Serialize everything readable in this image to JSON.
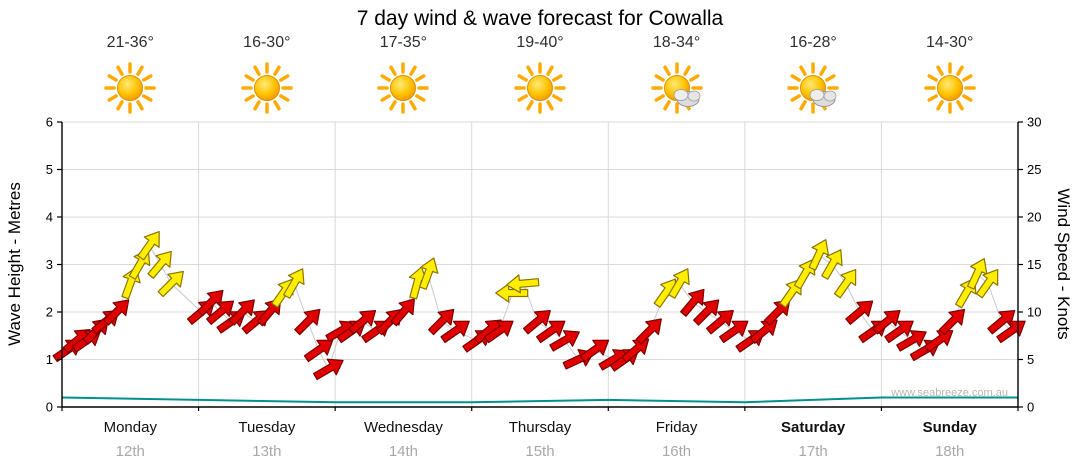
{
  "title": "7 day wind & wave forecast for Cowalla",
  "watermark": "www.seabreeze.com.au",
  "colors": {
    "arrow_red": "#e00000",
    "arrow_red_outline": "#7a0000",
    "arrow_yellow": "#ffee00",
    "arrow_yellow_outline": "#8a7400",
    "wave_line": "#009090",
    "grid": "#d9d9d9",
    "axis": "#000000",
    "connector": "#c9c9c9",
    "date_text": "#a8a8a8"
  },
  "days": [
    {
      "name": "Monday",
      "date": "12th",
      "temp": "21-36°",
      "icon": "sunny",
      "bold": false
    },
    {
      "name": "Tuesday",
      "date": "13th",
      "temp": "16-30°",
      "icon": "sunny",
      "bold": false
    },
    {
      "name": "Wednesday",
      "date": "14th",
      "temp": "17-35°",
      "icon": "sunny",
      "bold": false
    },
    {
      "name": "Thursday",
      "date": "15th",
      "temp": "19-40°",
      "icon": "sunny",
      "bold": false
    },
    {
      "name": "Friday",
      "date": "16th",
      "temp": "18-34°",
      "icon": "partly-cloudy",
      "bold": false
    },
    {
      "name": "Saturday",
      "date": "17th",
      "temp": "16-28°",
      "icon": "partly-cloudy",
      "bold": true
    },
    {
      "name": "Sunday",
      "date": "18th",
      "temp": "14-30°",
      "icon": "sunny",
      "bold": true
    }
  ],
  "left_axis": {
    "label": "Wave Height - Metres",
    "min": 0,
    "max": 6,
    "ticks": [
      0,
      1,
      2,
      3,
      4,
      5,
      6
    ]
  },
  "right_axis": {
    "label": "Wind Speed - Knots",
    "min": 0,
    "max": 30,
    "ticks": [
      0,
      5,
      10,
      15,
      20,
      25,
      30
    ]
  },
  "chart_data": {
    "type": "scatter",
    "description": "Wind speed plotted as directional arrows against right axis (knots); red = lighter wind, yellow = stronger wind; angle_deg 0 = pointing right/east, negative = rotated up. Teal line = wave height (metres, left axis).",
    "categories": [
      "Monday 12th",
      "Tuesday 13th",
      "Wednesday 14th",
      "Thursday 15th",
      "Friday 16th",
      "Saturday 17th",
      "Sunday 18th"
    ],
    "ylim_wave": [
      0,
      6
    ],
    "ylim_wind": [
      0,
      30
    ],
    "wind_arrow_fields": [
      "day_index",
      "day_fraction",
      "knots",
      "angle_deg",
      "color"
    ],
    "wind_arrows": [
      [
        0,
        0.04,
        6,
        -35,
        "red"
      ],
      [
        0,
        0.11,
        7,
        -40,
        "red"
      ],
      [
        0,
        0.18,
        7,
        -35,
        "red"
      ],
      [
        0,
        0.25,
        8,
        -45,
        "red"
      ],
      [
        0,
        0.32,
        9,
        -40,
        "red"
      ],
      [
        0,
        0.4,
        10,
        -45,
        "red"
      ],
      [
        0,
        0.5,
        13,
        -70,
        "yellow"
      ],
      [
        0,
        0.57,
        15,
        -60,
        "yellow"
      ],
      [
        0,
        0.64,
        17,
        -55,
        "yellow"
      ],
      [
        0,
        0.72,
        15,
        -50,
        "yellow"
      ],
      [
        0,
        0.8,
        13,
        -45,
        "yellow"
      ],
      [
        1,
        0.02,
        10,
        -40,
        "red"
      ],
      [
        1,
        0.09,
        11,
        -45,
        "red"
      ],
      [
        1,
        0.16,
        10,
        -40,
        "red"
      ],
      [
        1,
        0.24,
        9,
        -35,
        "red"
      ],
      [
        1,
        0.32,
        10,
        -45,
        "red"
      ],
      [
        1,
        0.42,
        9,
        -40,
        "red"
      ],
      [
        1,
        0.52,
        10,
        -50,
        "red"
      ],
      [
        1,
        0.62,
        12,
        -55,
        "yellow"
      ],
      [
        1,
        0.7,
        13,
        -60,
        "yellow"
      ],
      [
        1,
        0.8,
        9,
        -45,
        "red"
      ],
      [
        1,
        0.88,
        6,
        -35,
        "red"
      ],
      [
        1,
        0.95,
        4,
        -30,
        "red"
      ],
      [
        2,
        0.04,
        8,
        -30,
        "red"
      ],
      [
        2,
        0.12,
        8,
        -35,
        "red"
      ],
      [
        2,
        0.2,
        9,
        -40,
        "red"
      ],
      [
        2,
        0.3,
        8,
        -35,
        "red"
      ],
      [
        2,
        0.4,
        9,
        -45,
        "red"
      ],
      [
        2,
        0.5,
        10,
        -50,
        "red"
      ],
      [
        2,
        0.6,
        13,
        -75,
        "yellow"
      ],
      [
        2,
        0.68,
        14,
        -70,
        "yellow"
      ],
      [
        2,
        0.78,
        9,
        -45,
        "red"
      ],
      [
        2,
        0.88,
        8,
        -35,
        "red"
      ],
      [
        3,
        0.04,
        7,
        -35,
        "red"
      ],
      [
        3,
        0.12,
        8,
        -40,
        "red"
      ],
      [
        3,
        0.2,
        8,
        -35,
        "red"
      ],
      [
        3,
        0.3,
        12,
        180,
        "yellow"
      ],
      [
        3,
        0.38,
        13,
        175,
        "yellow"
      ],
      [
        3,
        0.48,
        9,
        -40,
        "red"
      ],
      [
        3,
        0.58,
        8,
        -35,
        "red"
      ],
      [
        3,
        0.68,
        7,
        -30,
        "red"
      ],
      [
        3,
        0.78,
        5,
        -25,
        "red"
      ],
      [
        3,
        0.9,
        6,
        -35,
        "red"
      ],
      [
        4,
        0.04,
        5,
        -30,
        "red"
      ],
      [
        4,
        0.12,
        5,
        -35,
        "red"
      ],
      [
        4,
        0.2,
        6,
        -40,
        "red"
      ],
      [
        4,
        0.3,
        8,
        -45,
        "red"
      ],
      [
        4,
        0.42,
        12,
        -55,
        "yellow"
      ],
      [
        4,
        0.52,
        13,
        -60,
        "yellow"
      ],
      [
        4,
        0.62,
        11,
        -50,
        "red"
      ],
      [
        4,
        0.72,
        10,
        -45,
        "red"
      ],
      [
        4,
        0.82,
        9,
        -40,
        "red"
      ],
      [
        4,
        0.92,
        8,
        -35,
        "red"
      ],
      [
        5,
        0.04,
        7,
        -35,
        "red"
      ],
      [
        5,
        0.14,
        8,
        -40,
        "red"
      ],
      [
        5,
        0.24,
        10,
        -45,
        "red"
      ],
      [
        5,
        0.34,
        12,
        -55,
        "yellow"
      ],
      [
        5,
        0.44,
        14,
        -60,
        "yellow"
      ],
      [
        5,
        0.54,
        16,
        -65,
        "yellow"
      ],
      [
        5,
        0.64,
        15,
        -60,
        "yellow"
      ],
      [
        5,
        0.74,
        13,
        -55,
        "yellow"
      ],
      [
        5,
        0.84,
        10,
        -40,
        "red"
      ],
      [
        5,
        0.94,
        8,
        -35,
        "red"
      ],
      [
        6,
        0.04,
        9,
        -40,
        "red"
      ],
      [
        6,
        0.13,
        8,
        -35,
        "red"
      ],
      [
        6,
        0.22,
        7,
        -30,
        "red"
      ],
      [
        6,
        0.32,
        6,
        -30,
        "red"
      ],
      [
        6,
        0.42,
        7,
        -35,
        "red"
      ],
      [
        6,
        0.52,
        9,
        -45,
        "red"
      ],
      [
        6,
        0.62,
        12,
        -60,
        "yellow"
      ],
      [
        6,
        0.7,
        14,
        -65,
        "yellow"
      ],
      [
        6,
        0.78,
        13,
        -55,
        "yellow"
      ],
      [
        6,
        0.88,
        9,
        -40,
        "red"
      ],
      [
        6,
        0.95,
        8,
        -35,
        "red"
      ]
    ],
    "wave_height_metres": {
      "x_day_boundaries": [
        0,
        1,
        2,
        3,
        4,
        5,
        6,
        7
      ],
      "values": [
        0.2,
        0.15,
        0.1,
        0.1,
        0.15,
        0.1,
        0.2,
        0.2
      ]
    }
  }
}
